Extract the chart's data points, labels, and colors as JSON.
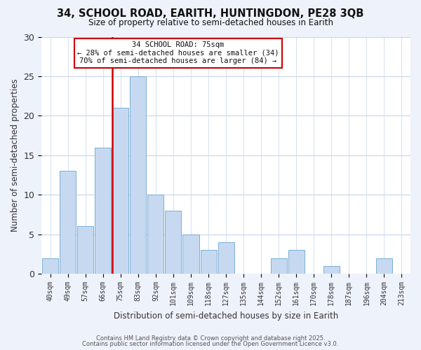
{
  "title_line1": "34, SCHOOL ROAD, EARITH, HUNTINGDON, PE28 3QB",
  "title_line2": "Size of property relative to semi-detached houses in Earith",
  "bar_labels": [
    "40sqm",
    "49sqm",
    "57sqm",
    "66sqm",
    "75sqm",
    "83sqm",
    "92sqm",
    "101sqm",
    "109sqm",
    "118sqm",
    "127sqm",
    "135sqm",
    "144sqm",
    "152sqm",
    "161sqm",
    "170sqm",
    "178sqm",
    "187sqm",
    "196sqm",
    "204sqm",
    "213sqm"
  ],
  "bar_values": [
    2,
    13,
    6,
    16,
    21,
    25,
    10,
    8,
    5,
    3,
    4,
    0,
    0,
    2,
    3,
    0,
    1,
    0,
    0,
    2,
    0
  ],
  "bar_color": "#c6d9f1",
  "bar_edge_color": "#7bafd4",
  "highlight_bar_index": 4,
  "highlight_bar_color": "#c6d9f1",
  "highlight_bar_edge_color": "#cc0000",
  "ylabel": "Number of semi-detached properties",
  "xlabel": "Distribution of semi-detached houses by size in Earith",
  "ylim": [
    0,
    30
  ],
  "yticks": [
    0,
    5,
    10,
    15,
    20,
    25,
    30
  ],
  "annotation_title": "34 SCHOOL ROAD: 75sqm",
  "annotation_line1": "← 28% of semi-detached houses are smaller (34)",
  "annotation_line2": "70% of semi-detached houses are larger (84) →",
  "annotation_box_color": "#ffffff",
  "annotation_box_edge_color": "#cc0000",
  "footer_line1": "Contains HM Land Registry data © Crown copyright and database right 2025.",
  "footer_line2": "Contains public sector information licensed under the Open Government Licence v3.0.",
  "bg_color": "#eef2fb",
  "plot_bg_color": "#ffffff",
  "grid_color": "#c8d4e8"
}
